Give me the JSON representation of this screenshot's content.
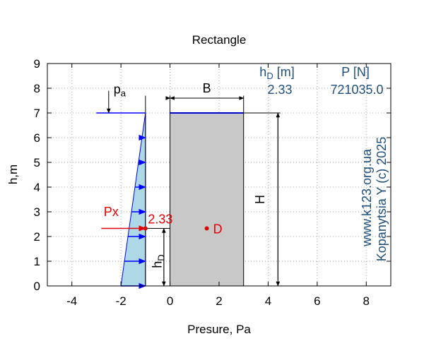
{
  "chart_data": {
    "type": "diagram-plot",
    "title": "Rectangle",
    "xlabel": "Presure, Pa",
    "ylabel": "h,m",
    "xlim": [
      -5,
      9
    ],
    "ylim": [
      0,
      9
    ],
    "xticks": [
      -4,
      -2,
      0,
      2,
      4,
      6,
      8
    ],
    "yticks": [
      0,
      1,
      2,
      3,
      4,
      5,
      6,
      7,
      8,
      9
    ],
    "grid": "dotted",
    "pressure_diagram": {
      "surface_level": 7,
      "wall_x": -1,
      "bottom_pressure": -2,
      "surface_line_from_x": -3,
      "arrow_levels": [
        0,
        1,
        2,
        3,
        4,
        5,
        6
      ]
    },
    "plate": {
      "x_from": 0,
      "x_to": 3,
      "y_from": 0,
      "y_to": 7,
      "color": "#c8c8c8",
      "top_line_color": "#0000cc"
    },
    "labels": {
      "pa": "p",
      "pa_sub": "a",
      "B": "B",
      "H": "H",
      "hD": "h",
      "hD_sub": "D",
      "Px": "Px",
      "Px_value": "2.33",
      "D": "D"
    },
    "center_of_pressure": {
      "x": 1.5,
      "y": 2.33
    },
    "resultant": {
      "x_from": -2.8,
      "x_to": -1,
      "y": 2.33
    },
    "info": {
      "hD_header": "h",
      "hD_header_sub": "D",
      "hD_header_unit": " [m]",
      "hD_value": "2.33",
      "P_header": "P [N]",
      "P_value": "721035.0"
    },
    "watermark": {
      "line1": "www.k123.org.ua",
      "line2": "Kopanytsia Y (c)  2025"
    },
    "colors": {
      "fill": "#add8e6",
      "arrow": "#0000ff",
      "red": "#e00000",
      "info": "#1f4f7a"
    }
  }
}
